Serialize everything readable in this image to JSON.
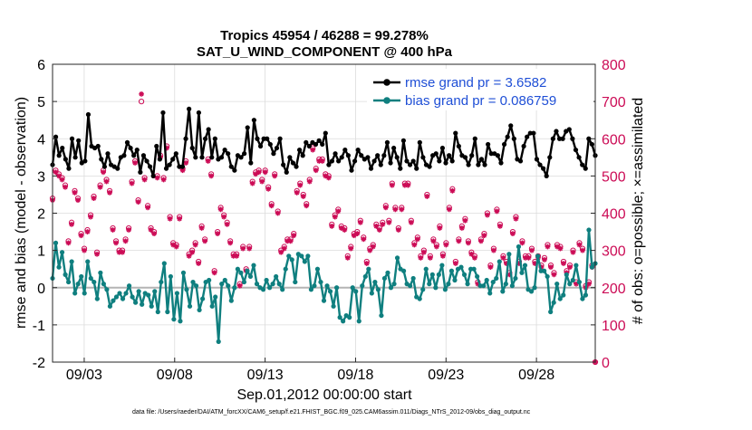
{
  "colors": {
    "rmse": "#000000",
    "bias": "#0f7f7f",
    "obs": "#cc0c56",
    "legend_text": "#1f4fd6",
    "zero_line": "#b4b4b4"
  },
  "chart_data": {
    "type": "line",
    "title_line1": "Tropics 45954 / 46288 = 99.278%",
    "title_line2": "SAT_U_WIND_COMPONENT @ 400 hPa",
    "xlabel": "Sep.01,2012 00:00:00 start",
    "ylabel_left": "rmse and bias (model - observation)",
    "ylabel_right": "# of obs: o=possible; ×=assimilated",
    "ylim_left": [
      -2,
      6
    ],
    "ylim_right": [
      0,
      800
    ],
    "xlim": [
      1.25,
      31.25
    ],
    "left_ticks": [
      "-2",
      "-1",
      "0",
      "1",
      "2",
      "3",
      "4",
      "5",
      "6"
    ],
    "right_ticks": [
      "0",
      "100",
      "200",
      "300",
      "400",
      "500",
      "600",
      "700",
      "800"
    ],
    "x_ticks": [
      {
        "pos": 3,
        "label": "09/03"
      },
      {
        "pos": 8,
        "label": "09/08"
      },
      {
        "pos": 13,
        "label": "09/13"
      },
      {
        "pos": 18,
        "label": "09/18"
      },
      {
        "pos": 23,
        "label": "09/23"
      },
      {
        "pos": 28,
        "label": "09/28"
      }
    ],
    "legend": [
      {
        "name": "rmse",
        "label": "rmse grand pr = 3.6582"
      },
      {
        "name": "bias",
        "label": "bias grand pr = 0.086759"
      }
    ],
    "footer": "data file: /Users/raeder/DAI/ATM_forcXX/CAM6_setup/f.e21.FHIST_BGC.f09_025.CAM6assim.011/Diags_NTrS_2012-09/obs_diag_output.nc",
    "series": [
      {
        "name": "rmse",
        "values": [
          3.3,
          4.05,
          3.55,
          3.75,
          3.45,
          3.2,
          4.0,
          3.5,
          3.95,
          3.35,
          3.4,
          4.65,
          3.8,
          3.75,
          3.8,
          3.45,
          3.25,
          3.6,
          3.3,
          3.25,
          3.2,
          3.5,
          3.55,
          3.9,
          3.75,
          3.55,
          3.7,
          3.1,
          3.55,
          3.4,
          3.25,
          3.0,
          3.8,
          3.45,
          4.7,
          3.2,
          3.3,
          3.45,
          3.6,
          3.25,
          3.25,
          4.0,
          4.8,
          3.75,
          3.5,
          4.7,
          3.5,
          4.0,
          4.25,
          3.5,
          4.0,
          3.45,
          3.5,
          3.7,
          3.6,
          3.25,
          3.15,
          3.55,
          3.5,
          3.6,
          4.3,
          3.35,
          4.5,
          4.0,
          3.8,
          4.0,
          4.0,
          3.85,
          3.6,
          3.75,
          4.0,
          3.3,
          3.1,
          3.5,
          3.35,
          3.25,
          3.7,
          3.55,
          3.9,
          3.8,
          3.9,
          3.85,
          3.95,
          3.85,
          4.15,
          3.3,
          3.4,
          3.6,
          3.4,
          3.5,
          3.7,
          3.55,
          3.15,
          3.4,
          3.7,
          3.55,
          3.45,
          3.5,
          3.2,
          3.4,
          3.55,
          3.3,
          3.55,
          3.9,
          3.35,
          3.75,
          3.5,
          3.2,
          3.95,
          3.4,
          3.3,
          3.4,
          3.2,
          3.9,
          3.5,
          3.3,
          3.25,
          3.55,
          3.6,
          3.4,
          3.75,
          3.35,
          3.55,
          3.4,
          4.15,
          3.8,
          3.55,
          3.5,
          3.3,
          3.55,
          4.0,
          3.3,
          3.45,
          3.3,
          3.85,
          3.6,
          3.6,
          3.55,
          3.35,
          3.85,
          4.05,
          4.35,
          4.0,
          3.45,
          3.4,
          3.8,
          4.05,
          4.15,
          4.15,
          3.45,
          3.3,
          3.2,
          3.0,
          3.5,
          4.0,
          4.2,
          4.0,
          4.0,
          4.2,
          4.25,
          4.0,
          3.7,
          3.5,
          3.3,
          3.2,
          4.0,
          3.85,
          3.55
        ]
      },
      {
        "name": "bias",
        "values": [
          0.25,
          1.2,
          0.55,
          0.95,
          0.35,
          0.15,
          0.7,
          -0.15,
          0.1,
          0.3,
          -0.15,
          0.7,
          0.25,
          0.15,
          -0.3,
          0.4,
          0.1,
          -0.05,
          -0.5,
          -0.35,
          -0.25,
          -0.15,
          -0.3,
          -0.15,
          0.05,
          -0.25,
          -0.4,
          -0.1,
          -0.45,
          -0.15,
          -0.2,
          -0.5,
          -0.1,
          -0.65,
          0.15,
          0.65,
          -0.65,
          0.3,
          -0.85,
          -0.15,
          -0.9,
          0.4,
          -0.05,
          -0.5,
          0.15,
          0.05,
          -0.6,
          -0.3,
          0.15,
          0.2,
          -0.5,
          -0.25,
          -1.45,
          0.1,
          0.2,
          0.05,
          -0.35,
          0.0,
          0.5,
          0.4,
          0.15,
          0.45,
          0.3,
          0.6,
          0.1,
          0.0,
          -0.05,
          0.2,
          0.0,
          0.1,
          0.3,
          0.1,
          -0.05,
          0.5,
          0.85,
          0.75,
          0.15,
          0.9,
          0.85,
          0.7,
          0.85,
          -0.05,
          0.05,
          0.5,
          0.15,
          -0.35,
          0.05,
          -0.1,
          -0.5,
          0.0,
          -0.8,
          -0.9,
          -0.75,
          -0.8,
          0.0,
          -0.1,
          -0.9,
          0.05,
          0.3,
          0.5,
          -0.15,
          0.15,
          -0.05,
          -0.75,
          0.25,
          0.4,
          0.0,
          0.1,
          0.8,
          0.5,
          0.45,
          0.1,
          0.05,
          0.25,
          -0.25,
          -0.3,
          -0.05,
          0.5,
          0.1,
          0.35,
          0.0,
          0.35,
          0.6,
          -0.05,
          0.1,
          0.45,
          0.2,
          0.5,
          0.55,
          0.35,
          0.1,
          0.5,
          0.5,
          0.3,
          0.05,
          0.05,
          0.2,
          -0.15,
          0.15,
          0.25,
          0.7,
          -0.1,
          0.1,
          0.9,
          0.05,
          0.25,
          1.1,
          0.4,
          0.6,
          -0.05,
          -0.1,
          0.0,
          0.85,
          0.45,
          0.45,
          0.3,
          -0.65,
          -0.4,
          0.1,
          -0.3,
          -0.2,
          0.35,
          0.1,
          0.2,
          0.6,
          0.15,
          -0.3,
          -0.2,
          1.55,
          0.55,
          0.65
        ]
      },
      {
        "name": "obs_possible",
        "values": [
          440,
          515,
          505,
          495,
          475,
          325,
          375,
          460,
          440,
          345,
          305,
          355,
          395,
          445,
          295,
          475,
          515,
          490,
          460,
          360,
          325,
          300,
          300,
          330,
          360,
          485,
          540,
          435,
          700,
          495,
          420,
          360,
          350,
          500,
          555,
          495,
          580,
          390,
          320,
          315,
          390,
          520,
          540,
          290,
          300,
          320,
          270,
          365,
          330,
          545,
          505,
          245,
          350,
          415,
          395,
          375,
          325,
          290,
          290,
          210,
          310,
          250,
          310,
          485,
          510,
          515,
          490,
          515,
          470,
          425,
          505,
          405,
          300,
          310,
          330,
          330,
          345,
          460,
          480,
          450,
          425,
          490,
          575,
          520,
          545,
          545,
          505,
          500,
          370,
          395,
          410,
          365,
          360,
          285,
          310,
          345,
          350,
          380,
          335,
          270,
          305,
          315,
          370,
          360,
          375,
          420,
          380,
          480,
          415,
          360,
          415,
          480,
          480,
          380,
          320,
          335,
          285,
          300,
          450,
          285,
          330,
          315,
          365,
          290,
          320,
          415,
          465,
          270,
          330,
          365,
          385,
          325,
          295,
          285,
          215,
          330,
          345,
          400,
          260,
          305,
          410,
          370,
          285,
          270,
          240,
          350,
          390,
          270,
          325,
          285,
          285,
          305,
          270,
          285,
          260,
          280,
          315,
          260,
          240,
          315,
          310,
          270,
          245,
          260,
          300,
          215,
          320,
          305,
          205,
          215,
          260,
          0
        ]
      },
      {
        "name": "obs_assimilated",
        "values": [
          435,
          510,
          500,
          490,
          470,
          320,
          370,
          455,
          435,
          340,
          300,
          350,
          390,
          440,
          290,
          470,
          510,
          485,
          455,
          355,
          320,
          295,
          295,
          325,
          355,
          480,
          535,
          430,
          720,
          490,
          415,
          355,
          345,
          495,
          550,
          490,
          575,
          385,
          315,
          310,
          385,
          515,
          535,
          285,
          295,
          315,
          265,
          360,
          325,
          540,
          500,
          240,
          345,
          410,
          390,
          370,
          320,
          285,
          285,
          205,
          305,
          245,
          305,
          480,
          505,
          510,
          485,
          510,
          465,
          420,
          500,
          400,
          295,
          305,
          325,
          325,
          340,
          455,
          475,
          445,
          420,
          485,
          570,
          515,
          540,
          540,
          500,
          495,
          365,
          390,
          405,
          360,
          355,
          280,
          305,
          340,
          345,
          375,
          330,
          265,
          300,
          310,
          365,
          355,
          370,
          415,
          375,
          475,
          410,
          355,
          410,
          475,
          475,
          375,
          315,
          330,
          280,
          295,
          445,
          280,
          325,
          310,
          360,
          285,
          315,
          410,
          460,
          265,
          325,
          360,
          380,
          320,
          290,
          280,
          210,
          325,
          340,
          395,
          255,
          300,
          405,
          365,
          280,
          265,
          235,
          345,
          385,
          265,
          320,
          280,
          280,
          300,
          265,
          280,
          255,
          275,
          310,
          255,
          235,
          310,
          305,
          265,
          240,
          255,
          295,
          210,
          315,
          300,
          200,
          210,
          255,
          0
        ]
      }
    ]
  }
}
